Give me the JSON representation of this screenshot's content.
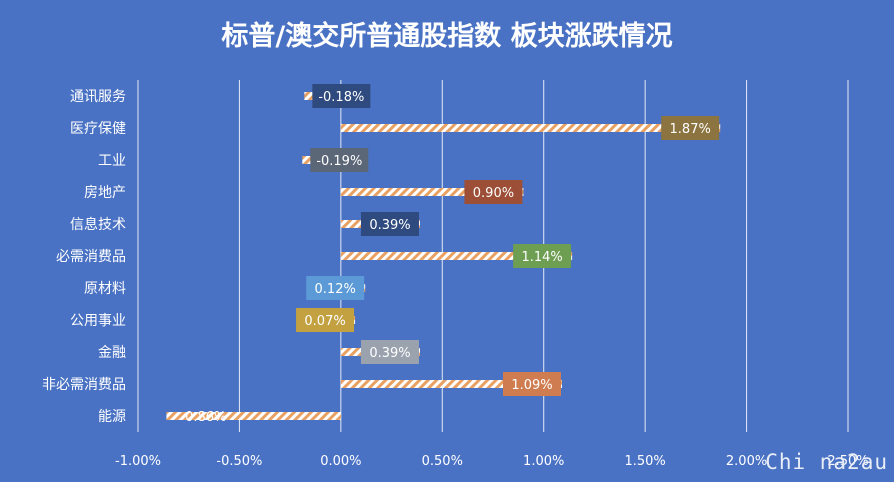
{
  "chart_data": {
    "type": "bar",
    "orientation": "horizontal",
    "title": "标普/澳交所普通股指数 板块涨跌情况",
    "categories": [
      "通讯服务",
      "医疗保健",
      "工业",
      "房地产",
      "信息技术",
      "必需消费品",
      "原材料",
      "公用事业",
      "金融",
      "非必需消费品",
      "能源"
    ],
    "values": [
      -0.18,
      1.87,
      -0.19,
      0.9,
      0.39,
      1.14,
      0.12,
      0.07,
      0.39,
      1.09,
      -0.86
    ],
    "value_labels": [
      "-0.18%",
      "1.87%",
      "-0.19%",
      "0.90%",
      "0.39%",
      "1.14%",
      "0.12%",
      "0.07%",
      "0.39%",
      "1.09%",
      "-0.86%"
    ],
    "label_colors": [
      "#2e4a7e",
      "#8c7440",
      "#5b6677",
      "#9c4e36",
      "#2e4a7e",
      "#6e9e52",
      "#5b9ad6",
      "#c3a040",
      "#9aa2ae",
      "#cf7d50",
      ""
    ],
    "xlim": [
      -1.0,
      2.5
    ],
    "xticks": [
      -1.0,
      -0.5,
      0.0,
      0.5,
      1.0,
      1.5,
      2.0,
      2.5
    ],
    "xtick_labels": [
      "-1.00%",
      "-0.50%",
      "0.00%",
      "0.50%",
      "1.00%",
      "1.50%",
      "2.00%",
      "2.50%"
    ],
    "grid": "vertical",
    "legend": "none",
    "bar_fill": "hatched white/orange",
    "background_color": "#4a72c4"
  },
  "watermark": "Chi na2au"
}
